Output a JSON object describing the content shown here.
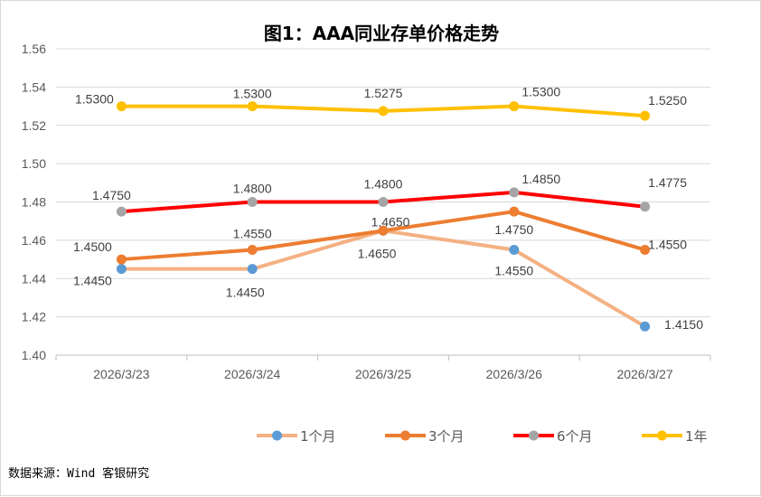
{
  "chart_data": {
    "type": "line",
    "title": "图1：AAA同业存单价格走势",
    "categories": [
      "2026/3/23",
      "2026/3/24",
      "2026/3/25",
      "2026/3/26",
      "2026/3/27"
    ],
    "ylim": [
      1.4,
      1.56
    ],
    "yticks": [
      "1.40",
      "1.42",
      "1.44",
      "1.46",
      "1.48",
      "1.50",
      "1.52",
      "1.54",
      "1.56"
    ],
    "grid": true,
    "legend_position": "bottom",
    "series": [
      {
        "name": "1个月",
        "values": [
          1.445,
          1.445,
          1.465,
          1.455,
          1.415
        ],
        "line_color": "#f4b183",
        "marker_color": "#5b9bd5",
        "labels": [
          "1.4450",
          "1.4450",
          "1.4650",
          "1.4550",
          "1.4150"
        ]
      },
      {
        "name": "3个月",
        "values": [
          1.45,
          1.455,
          1.465,
          1.475,
          1.455
        ],
        "line_color": "#ed7d31",
        "marker_color": "#ed7d31",
        "labels": [
          "1.4500",
          "1.4550",
          "1.4650",
          "1.4750",
          "1.4550"
        ]
      },
      {
        "name": "6个月",
        "values": [
          1.475,
          1.48,
          1.48,
          1.485,
          1.4775
        ],
        "line_color": "#ff0000",
        "marker_color": "#a5a5a5",
        "labels": [
          "1.4750",
          "1.4800",
          "1.4800",
          "1.4850",
          "1.4775"
        ]
      },
      {
        "name": "1年",
        "values": [
          1.53,
          1.53,
          1.5275,
          1.53,
          1.525
        ],
        "line_color": "#ffc000",
        "marker_color": "#ffc000",
        "labels": [
          "1.5300",
          "1.5300",
          "1.5275",
          "1.5300",
          "1.5250"
        ]
      }
    ]
  },
  "source": "数据来源：Wind 客银研究"
}
